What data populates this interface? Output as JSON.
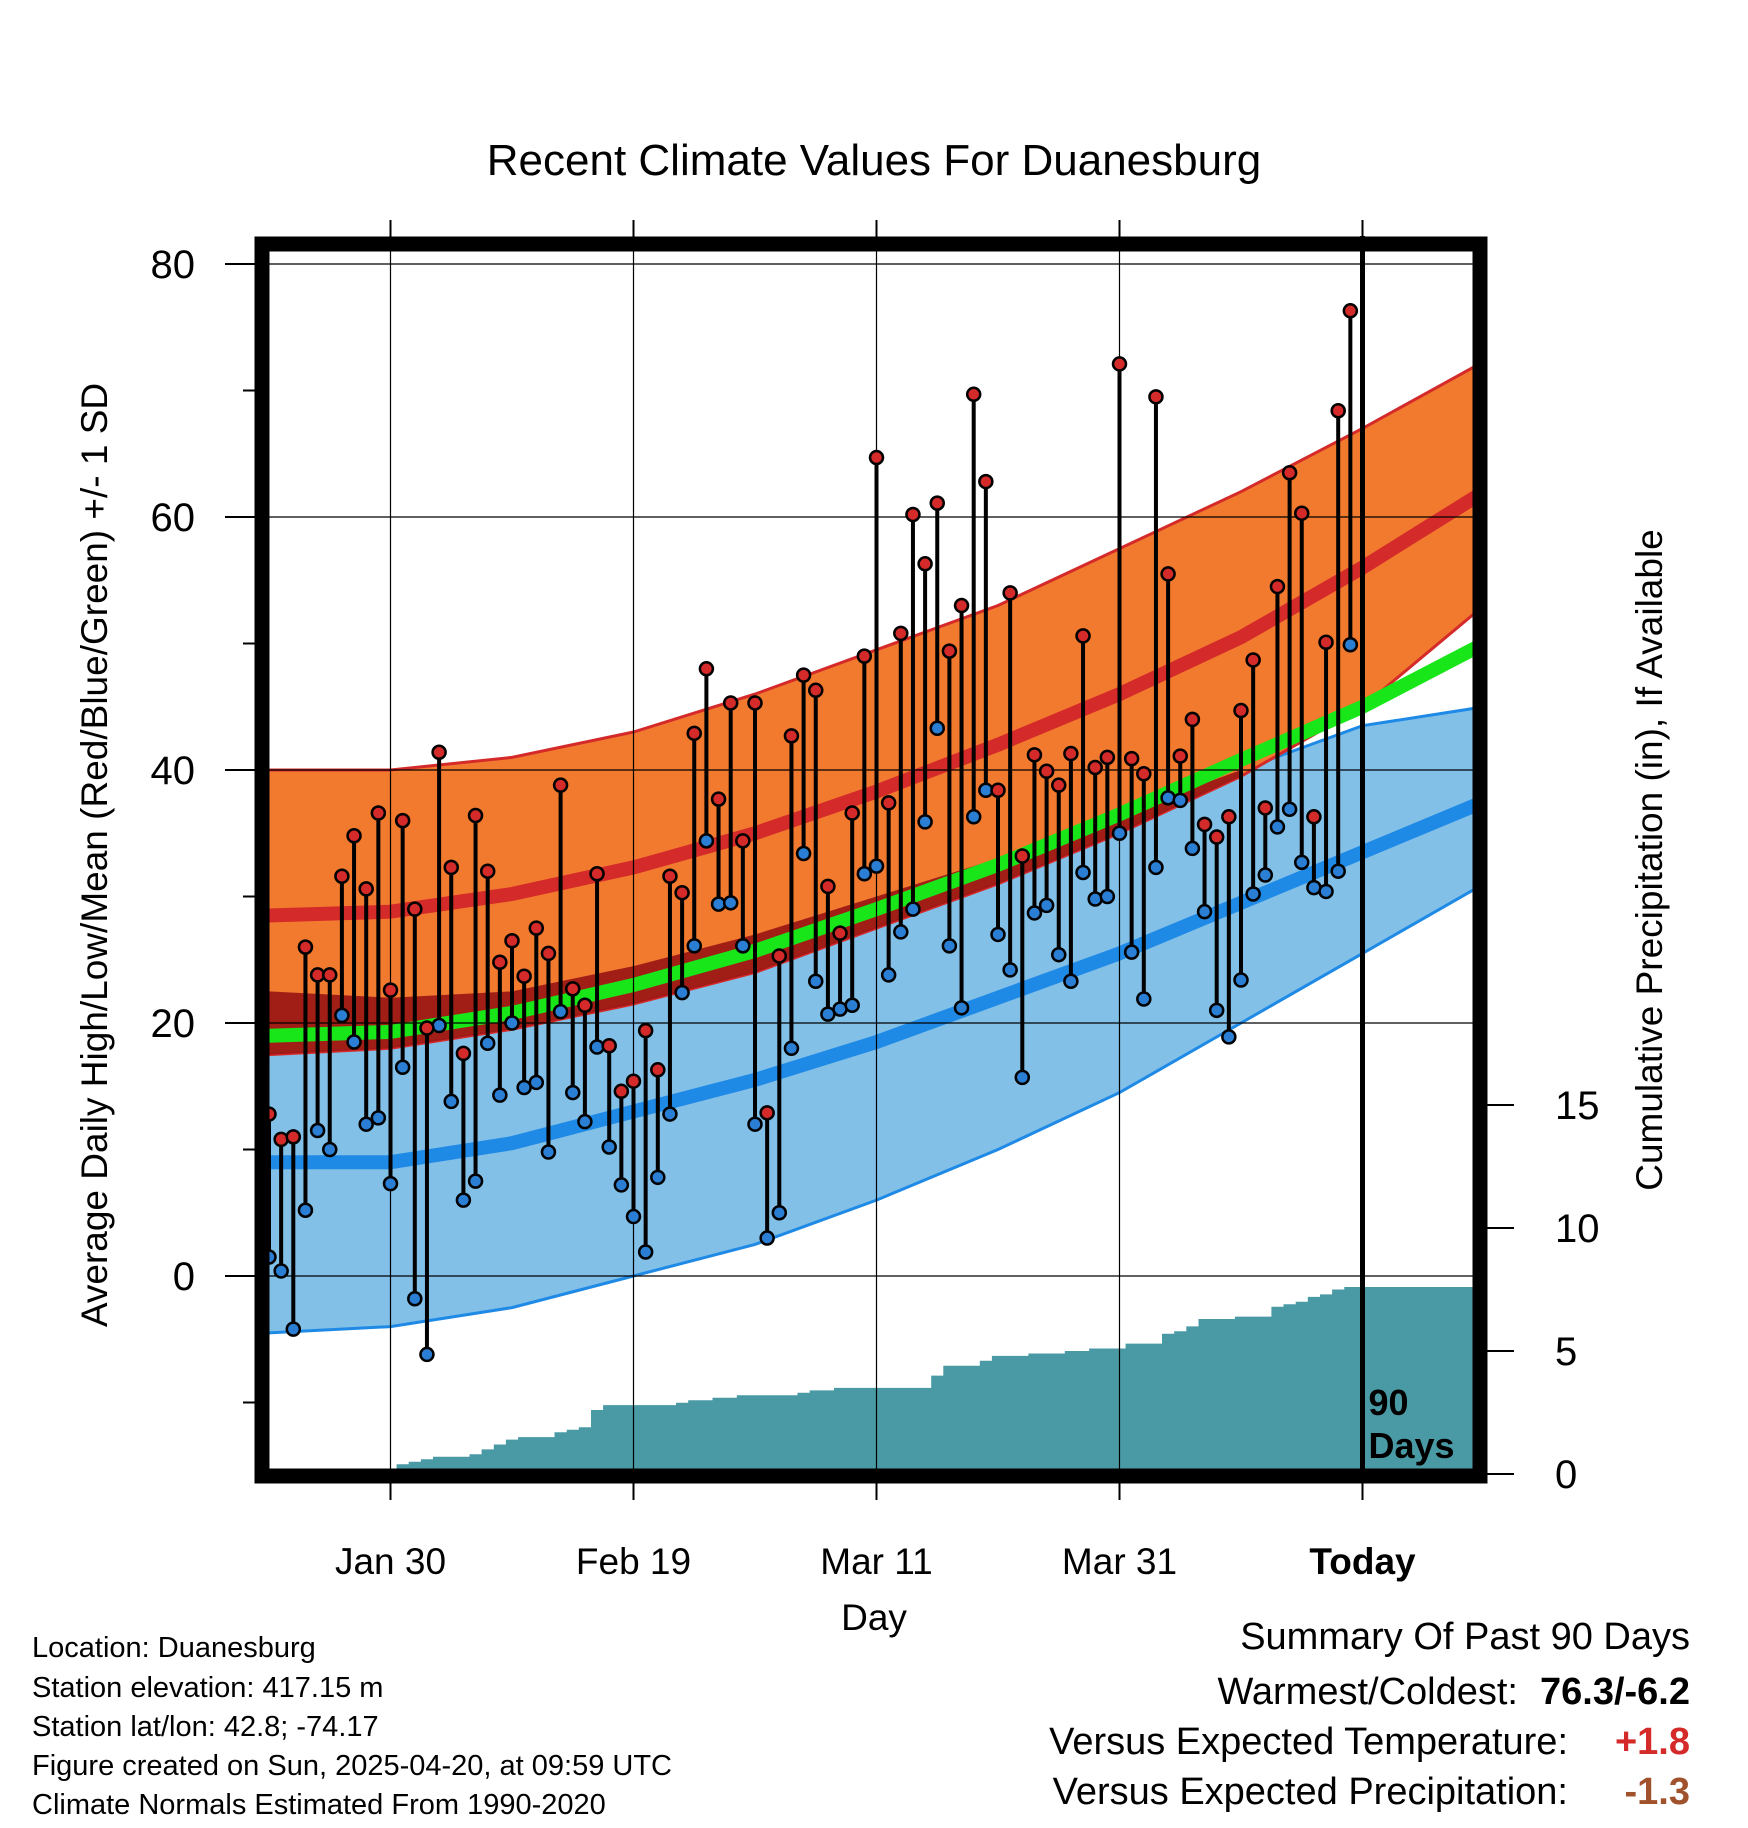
{
  "chart_data": {
    "type": "line",
    "title": "Recent Climate Values For Duanesburg",
    "xlabel": "Day",
    "ylabel": "Average Daily High/Low/Mean (Red/Blue/Green) +/- 1 SD",
    "y2label": "Cumulative Precipitation (in), If Available",
    "x_tick_labels": [
      "Jan 30",
      "Feb 19",
      "Mar 11",
      "Mar 31",
      "Today"
    ],
    "y_ticks": [
      0,
      20,
      40,
      60,
      80
    ],
    "y2_ticks": [
      0,
      5,
      10,
      15
    ],
    "ylim": [
      -16,
      82
    ],
    "today_annotation": [
      "90",
      "Days"
    ],
    "grid": true,
    "normals": {
      "day": [
        0,
        10,
        20,
        30,
        40,
        50,
        60,
        70,
        80,
        90,
        100
      ],
      "high_mean": [
        28.5,
        28.8,
        30.2,
        32.3,
        35.0,
        38.3,
        42.0,
        46.0,
        50.5,
        56.0,
        62.0
      ],
      "high_upper": [
        40.0,
        40.0,
        41.0,
        43.0,
        46.0,
        49.5,
        53.0,
        57.5,
        62.0,
        67.0,
        72.3
      ],
      "high_lower": [
        17.5,
        18.0,
        19.5,
        21.5,
        24.0,
        27.5,
        31.0,
        35.0,
        39.5,
        45.0,
        53.0
      ],
      "mean_mean": [
        19.0,
        19.3,
        20.8,
        23.0,
        25.7,
        29.0,
        32.5,
        36.5,
        40.8,
        45.0,
        50.0
      ],
      "low_mean": [
        9.0,
        9.0,
        10.5,
        13.0,
        15.5,
        18.5,
        22.0,
        25.5,
        29.5,
        33.5,
        37.5
      ],
      "low_upper": [
        22.5,
        22.0,
        22.5,
        24.5,
        27.0,
        30.0,
        33.0,
        36.5,
        40.0,
        43.5,
        45.0
      ],
      "low_lower": [
        -4.5,
        -4.0,
        -2.5,
        0.0,
        2.5,
        6.0,
        10.0,
        14.5,
        20.0,
        25.5,
        31.0
      ]
    },
    "series": [
      {
        "name": "High",
        "color": "#d42a2a",
        "x": [
          0,
          1,
          2,
          3,
          4,
          5,
          6,
          7,
          8,
          9,
          10,
          11,
          12,
          13,
          14,
          15,
          16,
          17,
          18,
          19,
          20,
          21,
          22,
          23,
          24,
          25,
          26,
          27,
          28,
          29,
          30,
          31,
          32,
          33,
          34,
          35,
          36,
          37,
          38,
          39,
          40,
          41,
          42,
          43,
          44,
          45,
          46,
          47,
          48,
          49,
          50,
          51,
          52,
          53,
          54,
          55,
          56,
          57,
          58,
          59,
          60,
          61,
          62,
          63,
          64,
          65,
          66,
          67,
          68,
          69,
          70,
          71,
          72,
          73,
          74,
          75,
          76,
          77,
          78,
          79,
          80,
          81,
          82,
          83,
          84,
          85,
          86,
          87,
          88,
          89
        ],
        "values": [
          12.8,
          10.8,
          11.0,
          26.0,
          23.8,
          23.8,
          31.6,
          34.8,
          30.6,
          36.6,
          22.6,
          36.0,
          29.0,
          19.6,
          41.4,
          32.3,
          17.6,
          36.4,
          32.0,
          24.8,
          26.5,
          23.7,
          27.5,
          25.5,
          38.8,
          22.7,
          21.4,
          31.8,
          18.2,
          14.6,
          15.4,
          19.4,
          16.3,
          31.6,
          30.3,
          42.9,
          48.0,
          37.7,
          45.3,
          34.4,
          45.3,
          12.9,
          25.3,
          42.7,
          47.5,
          46.3,
          30.8,
          27.1,
          36.6,
          49.0,
          64.7,
          37.4,
          50.8,
          60.2,
          56.3,
          61.1,
          49.4,
          53.0,
          69.7,
          62.8,
          38.4,
          54.0,
          33.2,
          41.2,
          39.9,
          38.8,
          41.3,
          50.6,
          40.2,
          41.0,
          72.1,
          40.9,
          39.7,
          69.5,
          55.5,
          41.1,
          44.0,
          35.7,
          34.7,
          36.3,
          44.7,
          48.7,
          37.0,
          54.5,
          63.5,
          60.3,
          36.3,
          50.1,
          68.4,
          76.3
        ]
      },
      {
        "name": "Low",
        "color": "#2a7fd4",
        "x": [
          0,
          1,
          2,
          3,
          4,
          5,
          6,
          7,
          8,
          9,
          10,
          11,
          12,
          13,
          14,
          15,
          16,
          17,
          18,
          19,
          20,
          21,
          22,
          23,
          24,
          25,
          26,
          27,
          28,
          29,
          30,
          31,
          32,
          33,
          34,
          35,
          36,
          37,
          38,
          39,
          40,
          41,
          42,
          43,
          44,
          45,
          46,
          47,
          48,
          49,
          50,
          51,
          52,
          53,
          54,
          55,
          56,
          57,
          58,
          59,
          60,
          61,
          62,
          63,
          64,
          65,
          66,
          67,
          68,
          69,
          70,
          71,
          72,
          73,
          74,
          75,
          76,
          77,
          78,
          79,
          80,
          81,
          82,
          83,
          84,
          85,
          86,
          87,
          88,
          89
        ],
        "values": [
          1.5,
          0.4,
          -4.2,
          5.2,
          11.5,
          10.0,
          20.6,
          18.5,
          12.0,
          12.5,
          7.3,
          16.5,
          -1.8,
          -6.2,
          19.8,
          13.8,
          6.0,
          7.5,
          18.4,
          14.3,
          20.0,
          14.9,
          15.3,
          9.8,
          20.9,
          14.5,
          12.2,
          18.1,
          10.2,
          7.2,
          4.7,
          1.9,
          7.8,
          12.8,
          22.4,
          26.1,
          34.4,
          29.4,
          29.5,
          26.1,
          12.0,
          3.0,
          5.0,
          18.0,
          33.4,
          23.3,
          20.7,
          21.1,
          21.4,
          31.8,
          32.4,
          23.8,
          27.2,
          29.0,
          35.9,
          43.3,
          26.1,
          21.2,
          36.3,
          38.4,
          27.0,
          24.2,
          15.7,
          28.7,
          29.3,
          25.4,
          23.3,
          31.9,
          29.8,
          30.0,
          35.0,
          25.6,
          21.9,
          32.3,
          37.8,
          37.6,
          33.8,
          28.8,
          21.0,
          18.9,
          23.4,
          30.2,
          31.7,
          35.5,
          36.9,
          32.7,
          30.7,
          30.4,
          32.0,
          49.9
        ]
      },
      {
        "name": "Cumulative Precipitation",
        "color": "#4a9aa5",
        "x": [
          0,
          1,
          2,
          3,
          4,
          5,
          6,
          7,
          8,
          9,
          10,
          11,
          12,
          13,
          14,
          15,
          16,
          17,
          18,
          19,
          20,
          21,
          22,
          23,
          24,
          25,
          26,
          27,
          28,
          29,
          30,
          31,
          32,
          33,
          34,
          35,
          36,
          37,
          38,
          39,
          40,
          41,
          42,
          43,
          44,
          45,
          46,
          47,
          48,
          49,
          50,
          51,
          52,
          53,
          54,
          55,
          56,
          57,
          58,
          59,
          60,
          61,
          62,
          63,
          64,
          65,
          66,
          67,
          68,
          69,
          70,
          71,
          72,
          73,
          74,
          75,
          76,
          77,
          78,
          79,
          80,
          81,
          82,
          83,
          84,
          85,
          86,
          87,
          88,
          89
        ],
        "values": [
          0,
          0,
          0,
          0,
          0,
          0,
          0,
          0,
          0,
          0,
          0,
          0.4,
          0.5,
          0.6,
          0.7,
          0.7,
          0.7,
          0.8,
          1.0,
          1.2,
          1.4,
          1.5,
          1.5,
          1.5,
          1.7,
          1.8,
          1.9,
          2.6,
          2.8,
          2.8,
          2.8,
          2.8,
          2.8,
          2.8,
          2.9,
          3.0,
          3.0,
          3.1,
          3.1,
          3.2,
          3.2,
          3.2,
          3.2,
          3.2,
          3.3,
          3.4,
          3.4,
          3.5,
          3.5,
          3.5,
          3.5,
          3.5,
          3.5,
          3.5,
          3.5,
          4.0,
          4.4,
          4.4,
          4.4,
          4.6,
          4.8,
          4.8,
          4.8,
          4.9,
          4.9,
          4.9,
          5.0,
          5.0,
          5.1,
          5.1,
          5.1,
          5.3,
          5.3,
          5.3,
          5.7,
          5.8,
          6.0,
          6.3,
          6.3,
          6.3,
          6.4,
          6.4,
          6.4,
          6.8,
          6.9,
          7.0,
          7.2,
          7.3,
          7.5,
          7.6
        ]
      }
    ]
  },
  "info": {
    "location": "Location: Duanesburg",
    "elevation": "Station elevation: 417.15 m",
    "latlon": "Station lat/lon: 42.8; -74.17",
    "created": "Figure created on Sun, 2025-04-20, at 09:59 UTC",
    "normals_period": "Climate Normals Estimated From 1990-2020"
  },
  "summary": {
    "title": "Summary Of Past 90 Days",
    "warmest_label": "Warmest/Coldest:",
    "warmest_value": "76.3/-6.2",
    "temp_label": "Versus Expected Temperature:",
    "temp_value": "+1.8",
    "temp_color": "#d42a2a",
    "precip_label": "Versus Expected Precipitation:",
    "precip_value": "-1.3",
    "precip_color": "#a0522d"
  }
}
